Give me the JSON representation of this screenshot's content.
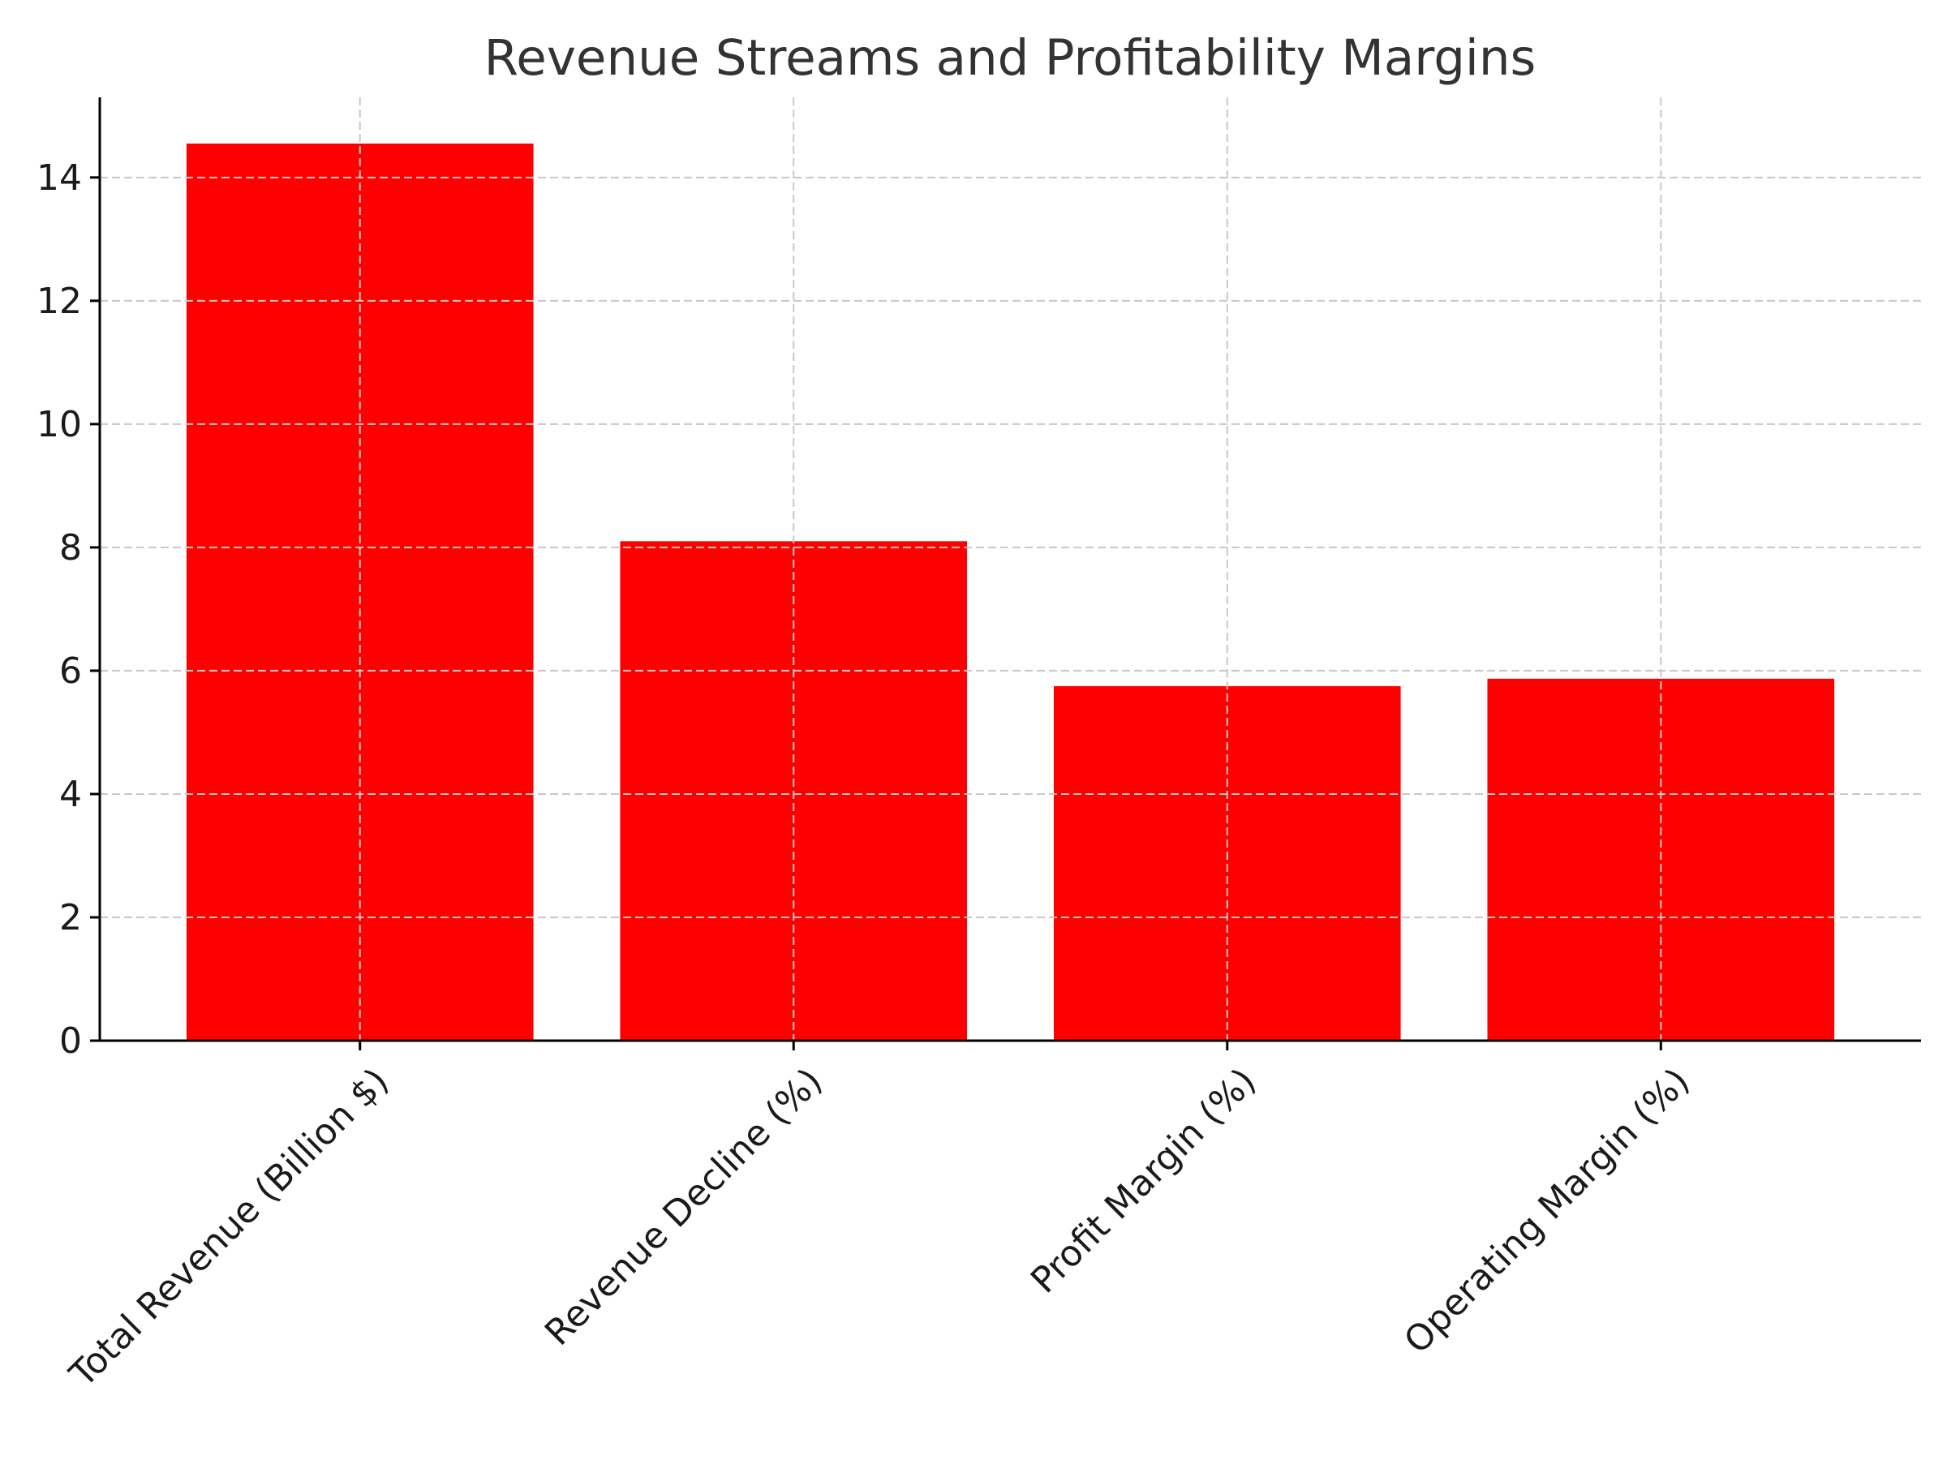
{
  "chart_data": {
    "type": "bar",
    "title": "Revenue Streams and Profitability Margins",
    "xlabel": "",
    "ylabel": "",
    "categories": [
      "Total Revenue (Billion $)",
      "Revenue Decline (%)",
      "Profit Margin (%)",
      "Operating Margin (%)"
    ],
    "values": [
      14.55,
      8.1,
      5.75,
      5.87
    ],
    "ylim": [
      0,
      15.3
    ],
    "yticks": [
      0,
      2,
      4,
      6,
      8,
      10,
      12,
      14
    ],
    "ytick_labels": [
      "0",
      "2",
      "4",
      "6",
      "8",
      "10",
      "12",
      "14"
    ],
    "bar_color": "#ff0000",
    "grid": true,
    "grid_style": "dashed",
    "legend": "none",
    "spines": "left-bottom",
    "xtick_rotation": "45 degrees"
  }
}
